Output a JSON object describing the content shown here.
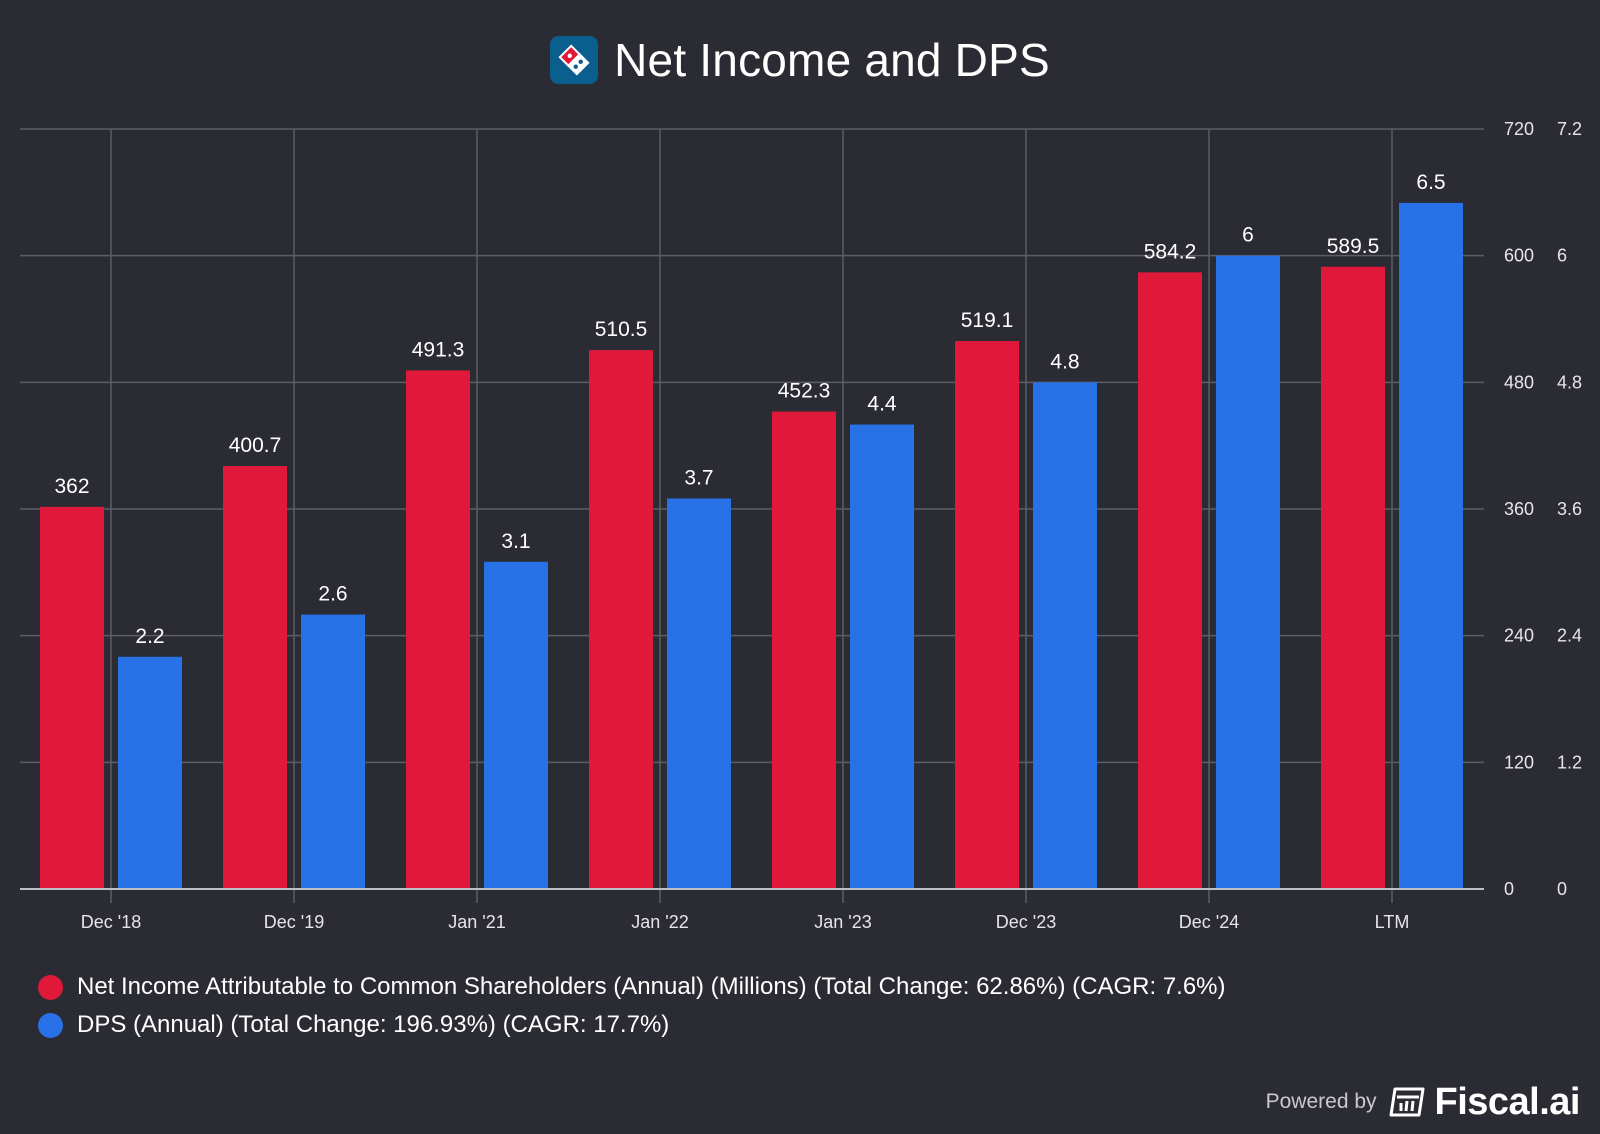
{
  "title": "Net Income and DPS",
  "colors": {
    "background": "#2a2b33",
    "net_income": "#e0193a",
    "dps": "#2871e6",
    "grid": "#5c5d66",
    "logo_bg": "#0b5f8f"
  },
  "chart_data": {
    "type": "bar",
    "title": "Net Income and DPS",
    "categories": [
      "Dec '18",
      "Dec '19",
      "Jan '21",
      "Jan '22",
      "Jan '23",
      "Dec '23",
      "Dec '24",
      "LTM"
    ],
    "series": [
      {
        "name": "Net Income Attributable to Common Shareholders (Annual) (Millions) (Total Change: 62.86%) (CAGR: 7.6%)",
        "axis": "left",
        "color": "#e0193a",
        "values": [
          362,
          400.7,
          491.3,
          510.5,
          452.3,
          519.1,
          584.2,
          589.5
        ],
        "labels": [
          "362",
          "400.7",
          "491.3",
          "510.5",
          "452.3",
          "519.1",
          "584.2",
          "589.5"
        ]
      },
      {
        "name": "DPS (Annual) (Total Change: 196.93%) (CAGR: 17.7%)",
        "axis": "right",
        "color": "#2871e6",
        "values": [
          2.2,
          2.6,
          3.1,
          3.7,
          4.4,
          4.8,
          6,
          6.5
        ],
        "labels": [
          "2.2",
          "2.6",
          "3.1",
          "3.7",
          "4.4",
          "4.8",
          "6",
          "6.5"
        ]
      }
    ],
    "y_left": {
      "ylim": [
        0,
        720
      ],
      "ticks": [
        "0",
        "120",
        "240",
        "360",
        "480",
        "600",
        "720"
      ]
    },
    "y_right": {
      "ylim": [
        0,
        7.2
      ],
      "ticks": [
        "0",
        "1.2",
        "2.4",
        "3.6",
        "4.8",
        "6",
        "7.2"
      ]
    },
    "grid": true,
    "legend_position": "bottom-left"
  },
  "branding": {
    "powered_by": "Powered by",
    "brand": "Fiscal.ai"
  }
}
